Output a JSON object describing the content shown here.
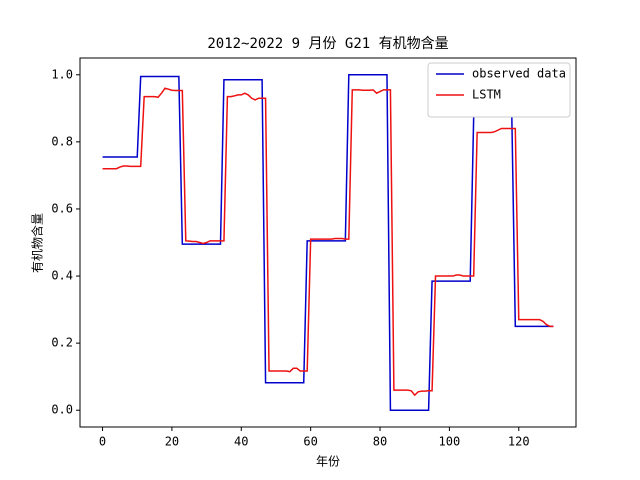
{
  "chart_data": {
    "type": "line",
    "title": "2012~2022 9 月份 G21 有机物含量",
    "xlabel": "年份",
    "ylabel": "有机物含量",
    "x": [
      0,
      1,
      2,
      3,
      4,
      5,
      6,
      7,
      8,
      9,
      10,
      11,
      12,
      13,
      14,
      15,
      16,
      17,
      18,
      19,
      20,
      21,
      22,
      23,
      24,
      25,
      26,
      27,
      28,
      29,
      30,
      31,
      32,
      33,
      34,
      35,
      36,
      37,
      38,
      39,
      40,
      41,
      42,
      43,
      44,
      45,
      46,
      47,
      48,
      49,
      50,
      51,
      52,
      53,
      54,
      55,
      56,
      57,
      58,
      59,
      60,
      61,
      62,
      63,
      64,
      65,
      66,
      67,
      68,
      69,
      70,
      71,
      72,
      73,
      74,
      75,
      76,
      77,
      78,
      79,
      80,
      81,
      82,
      83,
      84,
      85,
      86,
      87,
      88,
      89,
      90,
      91,
      92,
      93,
      94,
      95,
      96,
      97,
      98,
      99,
      100,
      101,
      102,
      103,
      104,
      105,
      106,
      107,
      108,
      109,
      110,
      111,
      112,
      113,
      114,
      115,
      116,
      117,
      118,
      119,
      120,
      121,
      122,
      123,
      124,
      125,
      126,
      127,
      128,
      129,
      130
    ],
    "series": [
      {
        "name": "observed data",
        "color": "#0000cc",
        "values": [
          0.755,
          0.755,
          0.755,
          0.755,
          0.755,
          0.755,
          0.755,
          0.755,
          0.755,
          0.755,
          0.755,
          0.995,
          0.995,
          0.995,
          0.995,
          0.995,
          0.995,
          0.995,
          0.995,
          0.995,
          0.995,
          0.995,
          0.995,
          0.495,
          0.495,
          0.495,
          0.495,
          0.495,
          0.495,
          0.495,
          0.495,
          0.495,
          0.495,
          0.495,
          0.495,
          0.985,
          0.985,
          0.985,
          0.985,
          0.985,
          0.985,
          0.985,
          0.985,
          0.985,
          0.985,
          0.985,
          0.985,
          0.082,
          0.082,
          0.082,
          0.082,
          0.082,
          0.082,
          0.082,
          0.082,
          0.082,
          0.082,
          0.082,
          0.082,
          0.505,
          0.505,
          0.505,
          0.505,
          0.505,
          0.505,
          0.505,
          0.505,
          0.505,
          0.505,
          0.505,
          0.505,
          1.0,
          1.0,
          1.0,
          1.0,
          1.0,
          1.0,
          1.0,
          1.0,
          1.0,
          1.0,
          1.0,
          1.0,
          0.0,
          0.0,
          0.0,
          0.0,
          0.0,
          0.0,
          0.0,
          0.0,
          0.0,
          0.0,
          0.0,
          0.0,
          0.385,
          0.385,
          0.385,
          0.385,
          0.385,
          0.385,
          0.385,
          0.385,
          0.385,
          0.385,
          0.385,
          0.385,
          0.875,
          0.875,
          0.875,
          0.875,
          0.875,
          0.875,
          0.875,
          0.875,
          0.875,
          0.875,
          0.875,
          0.875,
          0.25,
          0.25,
          0.25,
          0.25,
          0.25,
          0.25,
          0.25,
          0.25,
          0.25,
          0.25,
          0.25,
          0.25
        ]
      },
      {
        "name": "LSTM",
        "color": "#ee1111",
        "values": [
          0.72,
          0.72,
          0.72,
          0.72,
          0.72,
          0.725,
          0.728,
          0.728,
          0.727,
          0.727,
          0.727,
          0.727,
          0.935,
          0.935,
          0.935,
          0.935,
          0.933,
          0.945,
          0.96,
          0.957,
          0.954,
          0.953,
          0.953,
          0.953,
          0.505,
          0.504,
          0.503,
          0.503,
          0.5,
          0.497,
          0.5,
          0.505,
          0.505,
          0.505,
          0.505,
          0.505,
          0.935,
          0.935,
          0.937,
          0.94,
          0.94,
          0.945,
          0.94,
          0.93,
          0.925,
          0.93,
          0.93,
          0.93,
          0.117,
          0.117,
          0.117,
          0.117,
          0.117,
          0.117,
          0.115,
          0.125,
          0.125,
          0.117,
          0.117,
          0.117,
          0.51,
          0.51,
          0.51,
          0.51,
          0.51,
          0.51,
          0.51,
          0.512,
          0.512,
          0.512,
          0.51,
          0.51,
          0.955,
          0.955,
          0.955,
          0.954,
          0.954,
          0.954,
          0.955,
          0.945,
          0.95,
          0.955,
          0.955,
          0.955,
          0.06,
          0.06,
          0.06,
          0.06,
          0.06,
          0.058,
          0.045,
          0.055,
          0.057,
          0.057,
          0.058,
          0.058,
          0.4,
          0.4,
          0.4,
          0.4,
          0.4,
          0.4,
          0.403,
          0.403,
          0.4,
          0.4,
          0.4,
          0.4,
          0.828,
          0.828,
          0.828,
          0.828,
          0.828,
          0.83,
          0.835,
          0.84,
          0.84,
          0.84,
          0.84,
          0.84,
          0.27,
          0.27,
          0.27,
          0.27,
          0.27,
          0.27,
          0.27,
          0.265,
          0.255,
          0.25,
          0.25
        ]
      }
    ],
    "xlim": [
      -6.5,
      136.5
    ],
    "ylim": [
      -0.05,
      1.05
    ],
    "xticks": [
      0,
      20,
      40,
      60,
      80,
      100,
      120
    ],
    "yticks": [
      {
        "value": 0,
        "label": "0.0"
      },
      {
        "value": 0.2,
        "label": "0.2"
      },
      {
        "value": 0.4,
        "label": "0.4"
      },
      {
        "value": 0.6,
        "label": "0.6"
      },
      {
        "value": 0.8,
        "label": "0.8"
      },
      {
        "value": 1,
        "label": "1.0"
      }
    ],
    "legend": "upper right",
    "grid": false
  }
}
